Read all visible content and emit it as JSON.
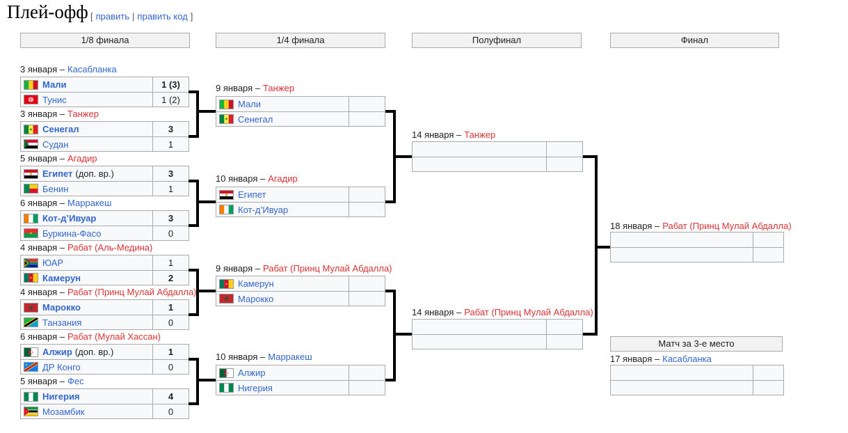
{
  "page": {
    "title": "Плей-офф",
    "edit": {
      "open": "[",
      "edit_label": "править",
      "separator": "|",
      "edit_code_label": "править код",
      "close": "]"
    }
  },
  "colors": {
    "link_blue": "#3366cc",
    "link_red": "#d73333",
    "row_bg": "#f8f9fa",
    "header_bg": "#f2f2f2",
    "border_gray": "#aaaaaa",
    "connector_black": "#000000"
  },
  "round_headers": [
    {
      "label": "1/8 финала"
    },
    {
      "label": "1/4 финала"
    },
    {
      "label": "Полуфинал"
    },
    {
      "label": "Финал"
    }
  ],
  "third_place": {
    "header": "Матч за 3-е место"
  },
  "matches": {
    "r16": [
      {
        "date": "3 января –",
        "location": "Касабланка",
        "loc_color": "blue",
        "rows": [
          {
            "flag": "mali",
            "team": "Мали",
            "bold": true,
            "score": "1 (3)"
          },
          {
            "flag": "tunisia",
            "team": "Тунис",
            "bold": false,
            "score": "1 (2)"
          }
        ]
      },
      {
        "date": "3 января –",
        "location": "Танжер",
        "loc_color": "red",
        "rows": [
          {
            "flag": "senegal",
            "team": "Сенегал",
            "bold": true,
            "score": "3"
          },
          {
            "flag": "sudan",
            "team": "Судан",
            "bold": false,
            "score": "1"
          }
        ]
      },
      {
        "date": "5 января –",
        "location": "Агадир",
        "loc_color": "red",
        "rows": [
          {
            "flag": "egypt",
            "team": "Египет",
            "extra": "(доп. вр.)",
            "bold": true,
            "score": "3"
          },
          {
            "flag": "benin",
            "team": "Бенин",
            "bold": false,
            "score": "1"
          }
        ]
      },
      {
        "date": "6 января –",
        "location": "Марракеш",
        "loc_color": "blue",
        "rows": [
          {
            "flag": "cote-divoire",
            "team": "Кот-д’Ивуар",
            "bold": true,
            "score": "3"
          },
          {
            "flag": "burkina-faso",
            "team": "Буркина-Фасо",
            "bold": false,
            "score": "0"
          }
        ]
      },
      {
        "date": "4 января –",
        "location": "Рабат (Аль-Медина)",
        "loc_color": "red",
        "rows": [
          {
            "flag": "south-africa",
            "team": "ЮАР",
            "bold": false,
            "score": "1"
          },
          {
            "flag": "cameroon",
            "team": "Камерун",
            "bold": true,
            "score": "2"
          }
        ]
      },
      {
        "date": "4 января –",
        "location": "Рабат (Принц Мулай Абдалла)",
        "loc_color": "red",
        "rows": [
          {
            "flag": "morocco",
            "team": "Марокко",
            "bold": true,
            "score": "1"
          },
          {
            "flag": "tanzania",
            "team": "Танзания",
            "bold": false,
            "score": "0"
          }
        ]
      },
      {
        "date": "6 января –",
        "location": "Рабат (Мулай Хассан)",
        "loc_color": "red",
        "rows": [
          {
            "flag": "algeria",
            "team": "Алжир",
            "extra": "(доп. вр.)",
            "bold": true,
            "score": "1"
          },
          {
            "flag": "dr-congo",
            "team": "ДР Конго",
            "bold": false,
            "score": "0"
          }
        ]
      },
      {
        "date": "5 января –",
        "location": "Фес",
        "loc_color": "blue",
        "rows": [
          {
            "flag": "nigeria",
            "team": "Нигерия",
            "bold": true,
            "score": "4"
          },
          {
            "flag": "mozambique",
            "team": "Мозамбик",
            "bold": false,
            "score": "0"
          }
        ]
      }
    ],
    "qf": [
      {
        "date": "9 января –",
        "location": "Танжер",
        "loc_color": "red",
        "rows": [
          {
            "flag": "mali",
            "team": "Мали",
            "bold": false,
            "score": ""
          },
          {
            "flag": "senegal",
            "team": "Сенегал",
            "bold": false,
            "score": ""
          }
        ]
      },
      {
        "date": "10 января –",
        "location": "Агадир",
        "loc_color": "red",
        "rows": [
          {
            "flag": "egypt",
            "team": "Египет",
            "bold": false,
            "score": ""
          },
          {
            "flag": "cote-divoire",
            "team": "Кот-д’Ивуар",
            "bold": false,
            "score": ""
          }
        ]
      },
      {
        "date": "9 января –",
        "location": "Рабат (Принц Мулай Абдалла)",
        "loc_color": "red",
        "rows": [
          {
            "flag": "cameroon",
            "team": "Камерун",
            "bold": false,
            "score": ""
          },
          {
            "flag": "morocco",
            "team": "Марокко",
            "bold": false,
            "score": ""
          }
        ]
      },
      {
        "date": "10 января –",
        "location": "Марракеш",
        "loc_color": "blue",
        "rows": [
          {
            "flag": "algeria",
            "team": "Алжир",
            "bold": false,
            "score": ""
          },
          {
            "flag": "nigeria",
            "team": "Нигерия",
            "bold": false,
            "score": ""
          }
        ]
      }
    ],
    "sf": [
      {
        "date": "14 января –",
        "location": "Танжер",
        "loc_color": "red",
        "rows": [
          {
            "team": "",
            "score": ""
          },
          {
            "team": "",
            "score": ""
          }
        ]
      },
      {
        "date": "14 января –",
        "location": "Рабат (Принц Мулай Абдалла)",
        "loc_color": "red",
        "rows": [
          {
            "team": "",
            "score": ""
          },
          {
            "team": "",
            "score": ""
          }
        ]
      }
    ],
    "final": {
      "date": "18 января –",
      "location": "Рабат (Принц Мулай Абдалла)",
      "loc_color": "red",
      "rows": [
        {
          "team": "",
          "score": ""
        },
        {
          "team": "",
          "score": ""
        }
      ]
    },
    "third": {
      "date": "17 января –",
      "location": "Касабланка",
      "loc_color": "blue",
      "rows": [
        {
          "team": "",
          "score": ""
        },
        {
          "team": "",
          "score": ""
        }
      ]
    }
  }
}
